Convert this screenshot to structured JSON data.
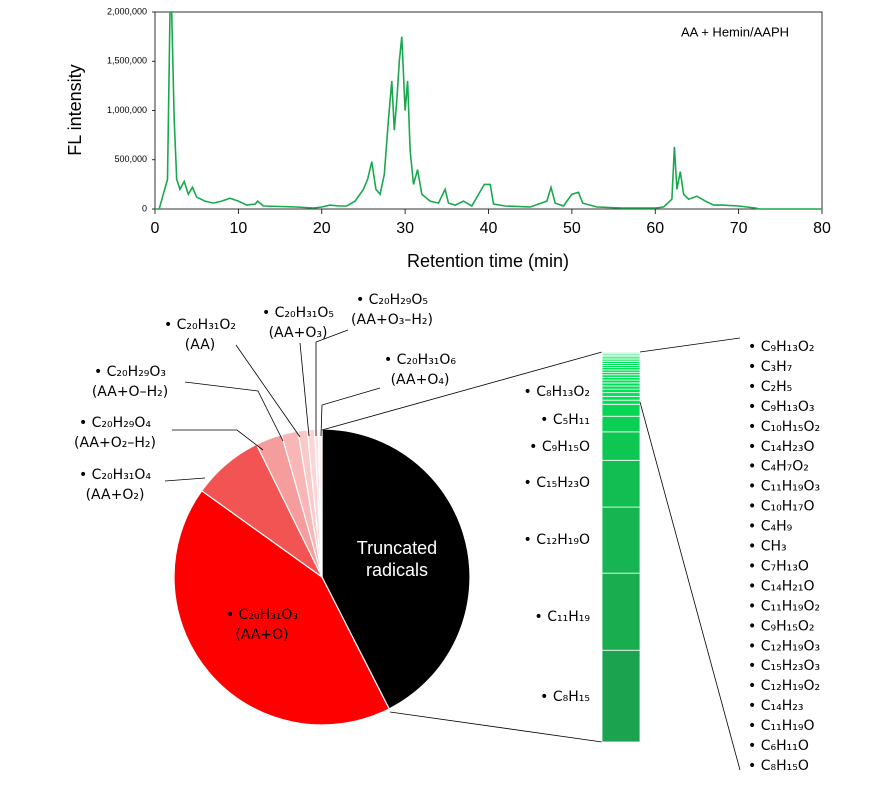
{
  "chart_data": [
    {
      "type": "line",
      "annotation": "AA + Hemin/AAPH",
      "x_label": "Retention time (min)",
      "y_label": "FL intensity",
      "color": "#1aa84f",
      "xlim": [
        0,
        80
      ],
      "xticks": [
        0,
        10,
        20,
        30,
        40,
        50,
        60,
        70,
        80
      ],
      "ylim": [
        0,
        2000000
      ],
      "yticks": [
        0,
        {
          "value": 500000,
          "label": "500,000"
        },
        {
          "value": 1000000,
          "label": "1,000,000"
        },
        {
          "value": 1500000,
          "label": "1,500,000"
        },
        {
          "value": 2000000,
          "label": "2,000,000"
        }
      ],
      "x": [
        0,
        0.5,
        1,
        1.5,
        1.8,
        2.0,
        2.3,
        2.6,
        3,
        3.5,
        4,
        4.5,
        5,
        6,
        7,
        8,
        9,
        10,
        11,
        12,
        12.3,
        13,
        15,
        17,
        19,
        20,
        21,
        22,
        23,
        24,
        25,
        25.5,
        26,
        26.5,
        27,
        27.5,
        28,
        28.4,
        28.7,
        29,
        29.3,
        29.6,
        30,
        30.3,
        30.6,
        31,
        31.5,
        32,
        33,
        34,
        34.8,
        35.2,
        36,
        37,
        38,
        39.5,
        40.2,
        40.6,
        42,
        45,
        47,
        47.5,
        48,
        49,
        50,
        50.8,
        51.3,
        53,
        56,
        60,
        61,
        62,
        62.3,
        62.6,
        63,
        63.4,
        64,
        65,
        66,
        67,
        68,
        70,
        71,
        72,
        72.5,
        80
      ],
      "values": [
        0,
        0,
        150000,
        300000,
        2000000,
        2000000,
        900000,
        300000,
        200000,
        280000,
        150000,
        220000,
        120000,
        80000,
        60000,
        80000,
        110000,
        80000,
        40000,
        50000,
        80000,
        30000,
        25000,
        20000,
        10000,
        20000,
        40000,
        30000,
        30000,
        80000,
        200000,
        300000,
        480000,
        200000,
        150000,
        350000,
        900000,
        1300000,
        800000,
        1100000,
        1500000,
        1750000,
        1000000,
        1300000,
        600000,
        250000,
        400000,
        150000,
        80000,
        60000,
        200000,
        60000,
        40000,
        80000,
        30000,
        250000,
        250000,
        50000,
        30000,
        20000,
        80000,
        220000,
        60000,
        30000,
        150000,
        170000,
        60000,
        20000,
        10000,
        10000,
        20000,
        100000,
        630000,
        200000,
        380000,
        150000,
        100000,
        130000,
        80000,
        40000,
        40000,
        30000,
        20000,
        10000,
        0,
        0
      ]
    },
    {
      "type": "pie",
      "categories": [
        "Truncated radicals",
        "• C₂₀H₃₁O₃",
        "• C₂₀H₃₁O₄",
        "• C₂₀H₂₉O₄",
        "• C₂₀H₂₉O₃",
        "• C₂₀H₃₁O₂",
        "• C₂₀H₃₁O₅",
        "• C₂₀H₂₉O₅",
        "• C₂₀H₃₁O₆"
      ],
      "sublabels": [
        null,
        "(AA+O)",
        "(AA+O₂)",
        "(AA+O₂–H₂)",
        "(AA+O–H₂)",
        "(AA)",
        "(AA+O₃)",
        "(AA+O₃–H₂)",
        "(AA+O₄)"
      ],
      "values": [
        42.5,
        42.4,
        7.8,
        2.9,
        1.8,
        1.0,
        0.8,
        0.4,
        0.4
      ],
      "colors": [
        "#000000",
        "#ff0000",
        "#f25353",
        "#f59c9c",
        "#f8b6b6",
        "#fac8c8",
        "#fcd6d6",
        "#fde2e2",
        "#feeeee"
      ]
    },
    {
      "type": "bar",
      "categories": [
        "• C₈H₁₅",
        "• C₁₁H₁₉",
        "• C₁₂H₁₉O",
        "• C₁₅H₂₃O",
        "• C₉H₁₅O",
        "• C₅H₁₁",
        "• C₈H₁₃O₂",
        "• C₈H₁₅O",
        "• C₆H₁₁O",
        "• C₁₁H₁₉O",
        "• C₁₄H₂₃",
        "• C₁₂H₁₉O₂",
        "• C₁₅H₂₃O₃",
        "• C₁₂H₁₉O₃",
        "• C₉H₁₅O₂",
        "• C₁₁H₁₉O₂",
        "• C₁₄H₂₁O",
        "• C₇H₁₃O",
        "• CH₃",
        "• C₄H₉",
        "• C₁₀H₁₇O",
        "• C₁₁H₁₉O₃",
        "• C₄H₇O₂",
        "• C₁₄H₂₃O",
        "• C₁₀H₁₅O₂",
        "• C₉H₁₃O₃",
        "• C₂H₅",
        "• C₃H₇",
        "• C₉H₁₃O₂"
      ],
      "values": [
        10,
        8.4,
        7.2,
        5.1,
        3.1,
        1.7,
        1.3,
        0.45,
        0.42,
        0.4,
        0.38,
        0.35,
        0.33,
        0.31,
        0.3,
        0.28,
        0.27,
        0.26,
        0.25,
        0.24,
        0.22,
        0.2,
        0.19,
        0.18,
        0.16,
        0.15,
        0.14,
        0.12,
        0.1
      ],
      "colors": [
        "#1ca350",
        "#19ad50",
        "#16b552",
        "#12bd52",
        "#0ec753",
        "#0acf54",
        "#07d655",
        "#00e056",
        "#00e056",
        "#00e056",
        "#00e056",
        "#00e056",
        "#00e056",
        "#00e056",
        "#00e056",
        "#00e056",
        "#00e056",
        "#00e056",
        "#00e056",
        "#00e056",
        "#00e056",
        "#00e056",
        "#00e056",
        "#00e056",
        "#00e056",
        "#00e056",
        "#00e056",
        "#00e056",
        "#00e056"
      ]
    }
  ]
}
